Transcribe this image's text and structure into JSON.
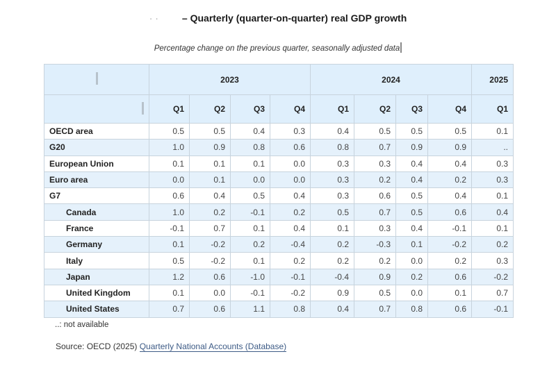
{
  "title": {
    "prefix": "·   ·",
    "text": "– Quarterly (quarter-on-quarter) real GDP growth"
  },
  "subtitle": "Percentage change on the previous quarter, seasonally adjusted data",
  "table": {
    "years": [
      {
        "label": "2023",
        "span": 4
      },
      {
        "label": "2024",
        "span": 4
      },
      {
        "label": "2025",
        "span": 1
      }
    ],
    "quarters": [
      "Q1",
      "Q2",
      "Q3",
      "Q4",
      "Q1",
      "Q2",
      "Q3",
      "Q4",
      "Q1"
    ],
    "rows": [
      {
        "name": "OECD area",
        "indent": false,
        "values": [
          "0.5",
          "0.5",
          "0.4",
          "0.3",
          "0.4",
          "0.5",
          "0.5",
          "0.5",
          "0.1"
        ]
      },
      {
        "name": "G20",
        "indent": false,
        "values": [
          "1.0",
          "0.9",
          "0.8",
          "0.6",
          "0.8",
          "0.7",
          "0.9",
          "0.9",
          ".."
        ]
      },
      {
        "name": "European Union",
        "indent": false,
        "values": [
          "0.1",
          "0.1",
          "0.1",
          "0.0",
          "0.3",
          "0.3",
          "0.4",
          "0.4",
          "0.3"
        ]
      },
      {
        "name": "Euro area",
        "indent": false,
        "values": [
          "0.0",
          "0.1",
          "0.0",
          "0.0",
          "0.3",
          "0.2",
          "0.4",
          "0.2",
          "0.3"
        ]
      },
      {
        "name": "G7",
        "indent": false,
        "values": [
          "0.6",
          "0.4",
          "0.5",
          "0.4",
          "0.3",
          "0.6",
          "0.5",
          "0.4",
          "0.1"
        ]
      },
      {
        "name": "Canada",
        "indent": true,
        "values": [
          "1.0",
          "0.2",
          "-0.1",
          "0.2",
          "0.5",
          "0.7",
          "0.5",
          "0.6",
          "0.4"
        ]
      },
      {
        "name": "France",
        "indent": true,
        "values": [
          "-0.1",
          "0.7",
          "0.1",
          "0.4",
          "0.1",
          "0.3",
          "0.4",
          "-0.1",
          "0.1"
        ]
      },
      {
        "name": "Germany",
        "indent": true,
        "values": [
          "0.1",
          "-0.2",
          "0.2",
          "-0.4",
          "0.2",
          "-0.3",
          "0.1",
          "-0.2",
          "0.2"
        ]
      },
      {
        "name": "Italy",
        "indent": true,
        "values": [
          "0.5",
          "-0.2",
          "0.1",
          "0.2",
          "0.2",
          "0.2",
          "0.0",
          "0.2",
          "0.3"
        ]
      },
      {
        "name": "Japan",
        "indent": true,
        "values": [
          "1.2",
          "0.6",
          "-1.0",
          "-0.1",
          "-0.4",
          "0.9",
          "0.2",
          "0.6",
          "-0.2"
        ]
      },
      {
        "name": "United Kingdom",
        "indent": true,
        "values": [
          "0.1",
          "0.0",
          "-0.1",
          "-0.2",
          "0.9",
          "0.5",
          "0.0",
          "0.1",
          "0.7"
        ]
      },
      {
        "name": "United States",
        "indent": true,
        "values": [
          "0.7",
          "0.6",
          "1.1",
          "0.8",
          "0.4",
          "0.7",
          "0.8",
          "0.6",
          "-0.1"
        ]
      }
    ]
  },
  "note": "..: not available",
  "source": {
    "prefix": "Source: OECD (2025) ",
    "link_text": "Quarterly National Accounts (Database)"
  },
  "colors": {
    "header_bg": "#dfeffc",
    "alt_row_bg": "#e5f1fb",
    "border": "#c7d3dd",
    "link": "#3c5a85"
  }
}
